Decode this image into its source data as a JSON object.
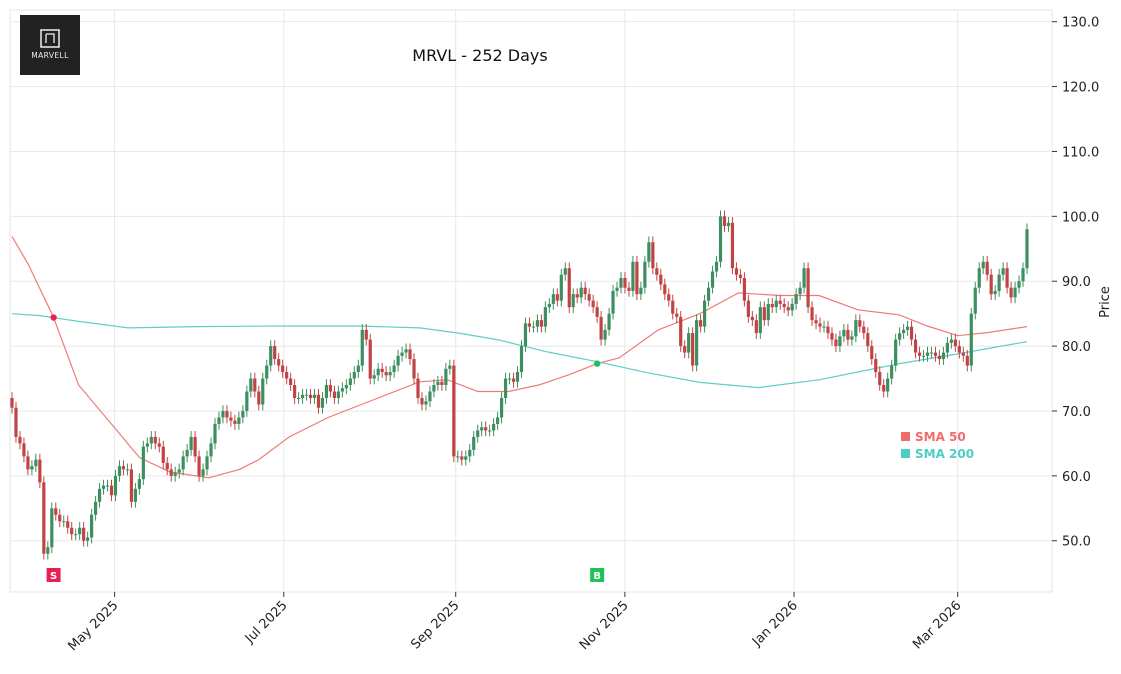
{
  "chart_data": {
    "type": "candlestick",
    "title": "MRVL - 252 Days",
    "ylabel": "Price",
    "xlabel": "",
    "ylim": [
      42.1,
      131.8
    ],
    "yticks": [
      50,
      60,
      70,
      80,
      90,
      100,
      110,
      120,
      130
    ],
    "ytick_labels": [
      "50.0",
      "60.0",
      "70.0",
      "80.0",
      "90.0",
      "100.0",
      "110.0",
      "120.0",
      "130.0"
    ],
    "xticks": [
      {
        "date": "2025-05-01",
        "label": "May 2025"
      },
      {
        "date": "2025-07-01",
        "label": "Jul 2025"
      },
      {
        "date": "2025-09-01",
        "label": "Sep 2025"
      },
      {
        "date": "2025-11-01",
        "label": "Nov 2025"
      },
      {
        "date": "2026-01-01",
        "label": "Jan 2026"
      },
      {
        "date": "2026-03-01",
        "label": "Mar 2026"
      }
    ],
    "date_range": [
      "2025-03-25",
      "2026-03-26"
    ],
    "grid": true,
    "legend_placement": "lower-right",
    "colors": {
      "up": "#3d8f5f",
      "down": "#c04446",
      "sma50": "#ee7b78",
      "sma200": "#5fcfc4",
      "sell": "#e8204f",
      "buy": "#22c05a"
    },
    "first_open": 72,
    "close": [
      70.5,
      66,
      65,
      63,
      61,
      61.5,
      62.5,
      59,
      48,
      49,
      55,
      54,
      53,
      53,
      52,
      51,
      51,
      52,
      50,
      50.5,
      54,
      56,
      58,
      58.5,
      58.5,
      57,
      60,
      61.5,
      61,
      61,
      56,
      58,
      59.5,
      64.5,
      65,
      66,
      65,
      64.5,
      62,
      61,
      60,
      60.5,
      61,
      63,
      64,
      66,
      63,
      60,
      61,
      63,
      65,
      68,
      69,
      70,
      69,
      68.5,
      68,
      69,
      70,
      73,
      75,
      73,
      71,
      75,
      77,
      80,
      78,
      77,
      76,
      75,
      74,
      72,
      72,
      72.5,
      72.5,
      72,
      72.5,
      70.5,
      72,
      74,
      73,
      72,
      73,
      73.5,
      74,
      75,
      76,
      77,
      82.5,
      81,
      75,
      75.5,
      76.5,
      76,
      75.5,
      76,
      77,
      78.5,
      79,
      79.5,
      78,
      75,
      72,
      71,
      71.5,
      73,
      74,
      74.5,
      74,
      76.5,
      77,
      63,
      63,
      62.5,
      63,
      64,
      66,
      67,
      67.5,
      67,
      67,
      68,
      69,
      72,
      75,
      75,
      74.5,
      76,
      80,
      83.5,
      83,
      83,
      84,
      83,
      86,
      86.5,
      88,
      87,
      91,
      92,
      86,
      88,
      87.5,
      89,
      88,
      87,
      86,
      84.5,
      81,
      82.5,
      85,
      88.5,
      89,
      90.5,
      89,
      88.5,
      93,
      88,
      89,
      93,
      96,
      92,
      91,
      89.5,
      88,
      87,
      85,
      84.5,
      80,
      79,
      82,
      77,
      84,
      83,
      87,
      89,
      91.5,
      93,
      100,
      98.5,
      99,
      92,
      91,
      90.5,
      87,
      84.5,
      84,
      82,
      86,
      84,
      86.5,
      86,
      87,
      86.5,
      86,
      85.5,
      86.5,
      88,
      89,
      92,
      86,
      84,
      83.5,
      83,
      83,
      82,
      81,
      80,
      81.5,
      82.5,
      81,
      81.5,
      84,
      83,
      82,
      80,
      78,
      76,
      74,
      73,
      75,
      77,
      81,
      82,
      82.5,
      83,
      81,
      79,
      78.5,
      78.5,
      79,
      79,
      78.5,
      78,
      79,
      80.5,
      81,
      80,
      79,
      78.5,
      77,
      85,
      89,
      92,
      93,
      91,
      88,
      88.5,
      91,
      92,
      89,
      87.5,
      89,
      90,
      92,
      98
    ],
    "series": [
      {
        "name": "SMA 50",
        "points": [
          [
            "2025-03-25",
            96.9
          ],
          [
            "2025-03-31",
            92.5
          ],
          [
            "2025-04-06",
            87.1
          ],
          [
            "2025-04-09",
            84.4
          ],
          [
            "2025-04-18",
            74.0
          ],
          [
            "2025-05-01",
            67.4
          ],
          [
            "2025-05-10",
            62.8
          ],
          [
            "2025-05-21",
            60.6
          ],
          [
            "2025-06-04",
            59.7
          ],
          [
            "2025-06-15",
            61.0
          ],
          [
            "2025-06-22",
            62.5
          ],
          [
            "2025-07-03",
            66.0
          ],
          [
            "2025-07-17",
            69.0
          ],
          [
            "2025-08-04",
            72.0
          ],
          [
            "2025-08-19",
            74.5
          ],
          [
            "2025-08-29",
            74.8
          ],
          [
            "2025-09-09",
            73.0
          ],
          [
            "2025-09-20",
            73.0
          ],
          [
            "2025-10-01",
            74.0
          ],
          [
            "2025-10-12",
            75.6
          ],
          [
            "2025-10-22",
            77.3
          ],
          [
            "2025-10-30",
            78.2
          ],
          [
            "2025-11-13",
            82.5
          ],
          [
            "2025-11-28",
            85.0
          ],
          [
            "2025-12-12",
            88.2
          ],
          [
            "2025-12-27",
            87.8
          ],
          [
            "2026-01-10",
            87.8
          ],
          [
            "2026-01-24",
            85.6
          ],
          [
            "2026-02-08",
            84.8
          ],
          [
            "2026-02-18",
            83.1
          ],
          [
            "2026-03-01",
            81.6
          ],
          [
            "2026-03-12",
            82.1
          ],
          [
            "2026-03-26",
            83.0
          ]
        ]
      },
      {
        "name": "SMA 200",
        "points": [
          [
            "2025-03-25",
            85.0
          ],
          [
            "2025-04-04",
            84.7
          ],
          [
            "2025-04-18",
            83.8
          ],
          [
            "2025-05-06",
            82.8
          ],
          [
            "2025-05-31",
            83.0
          ],
          [
            "2025-06-29",
            83.1
          ],
          [
            "2025-07-28",
            83.1
          ],
          [
            "2025-08-19",
            82.8
          ],
          [
            "2025-09-02",
            82.0
          ],
          [
            "2025-09-16",
            81.0
          ],
          [
            "2025-10-04",
            79.1
          ],
          [
            "2025-10-22",
            77.6
          ],
          [
            "2025-11-09",
            75.9
          ],
          [
            "2025-11-28",
            74.4
          ],
          [
            "2025-12-19",
            73.6
          ],
          [
            "2026-01-10",
            74.8
          ],
          [
            "2026-01-24",
            76.0
          ],
          [
            "2026-02-08",
            77.3
          ],
          [
            "2026-03-01",
            78.8
          ],
          [
            "2026-03-26",
            80.7
          ]
        ]
      }
    ],
    "signals": [
      {
        "type": "sell",
        "label": "S",
        "date": "2025-04-09",
        "price": 84.4
      },
      {
        "type": "buy",
        "label": "B",
        "date": "2025-10-22",
        "price": 77.3
      }
    ],
    "logo_text": "MARVELL"
  }
}
